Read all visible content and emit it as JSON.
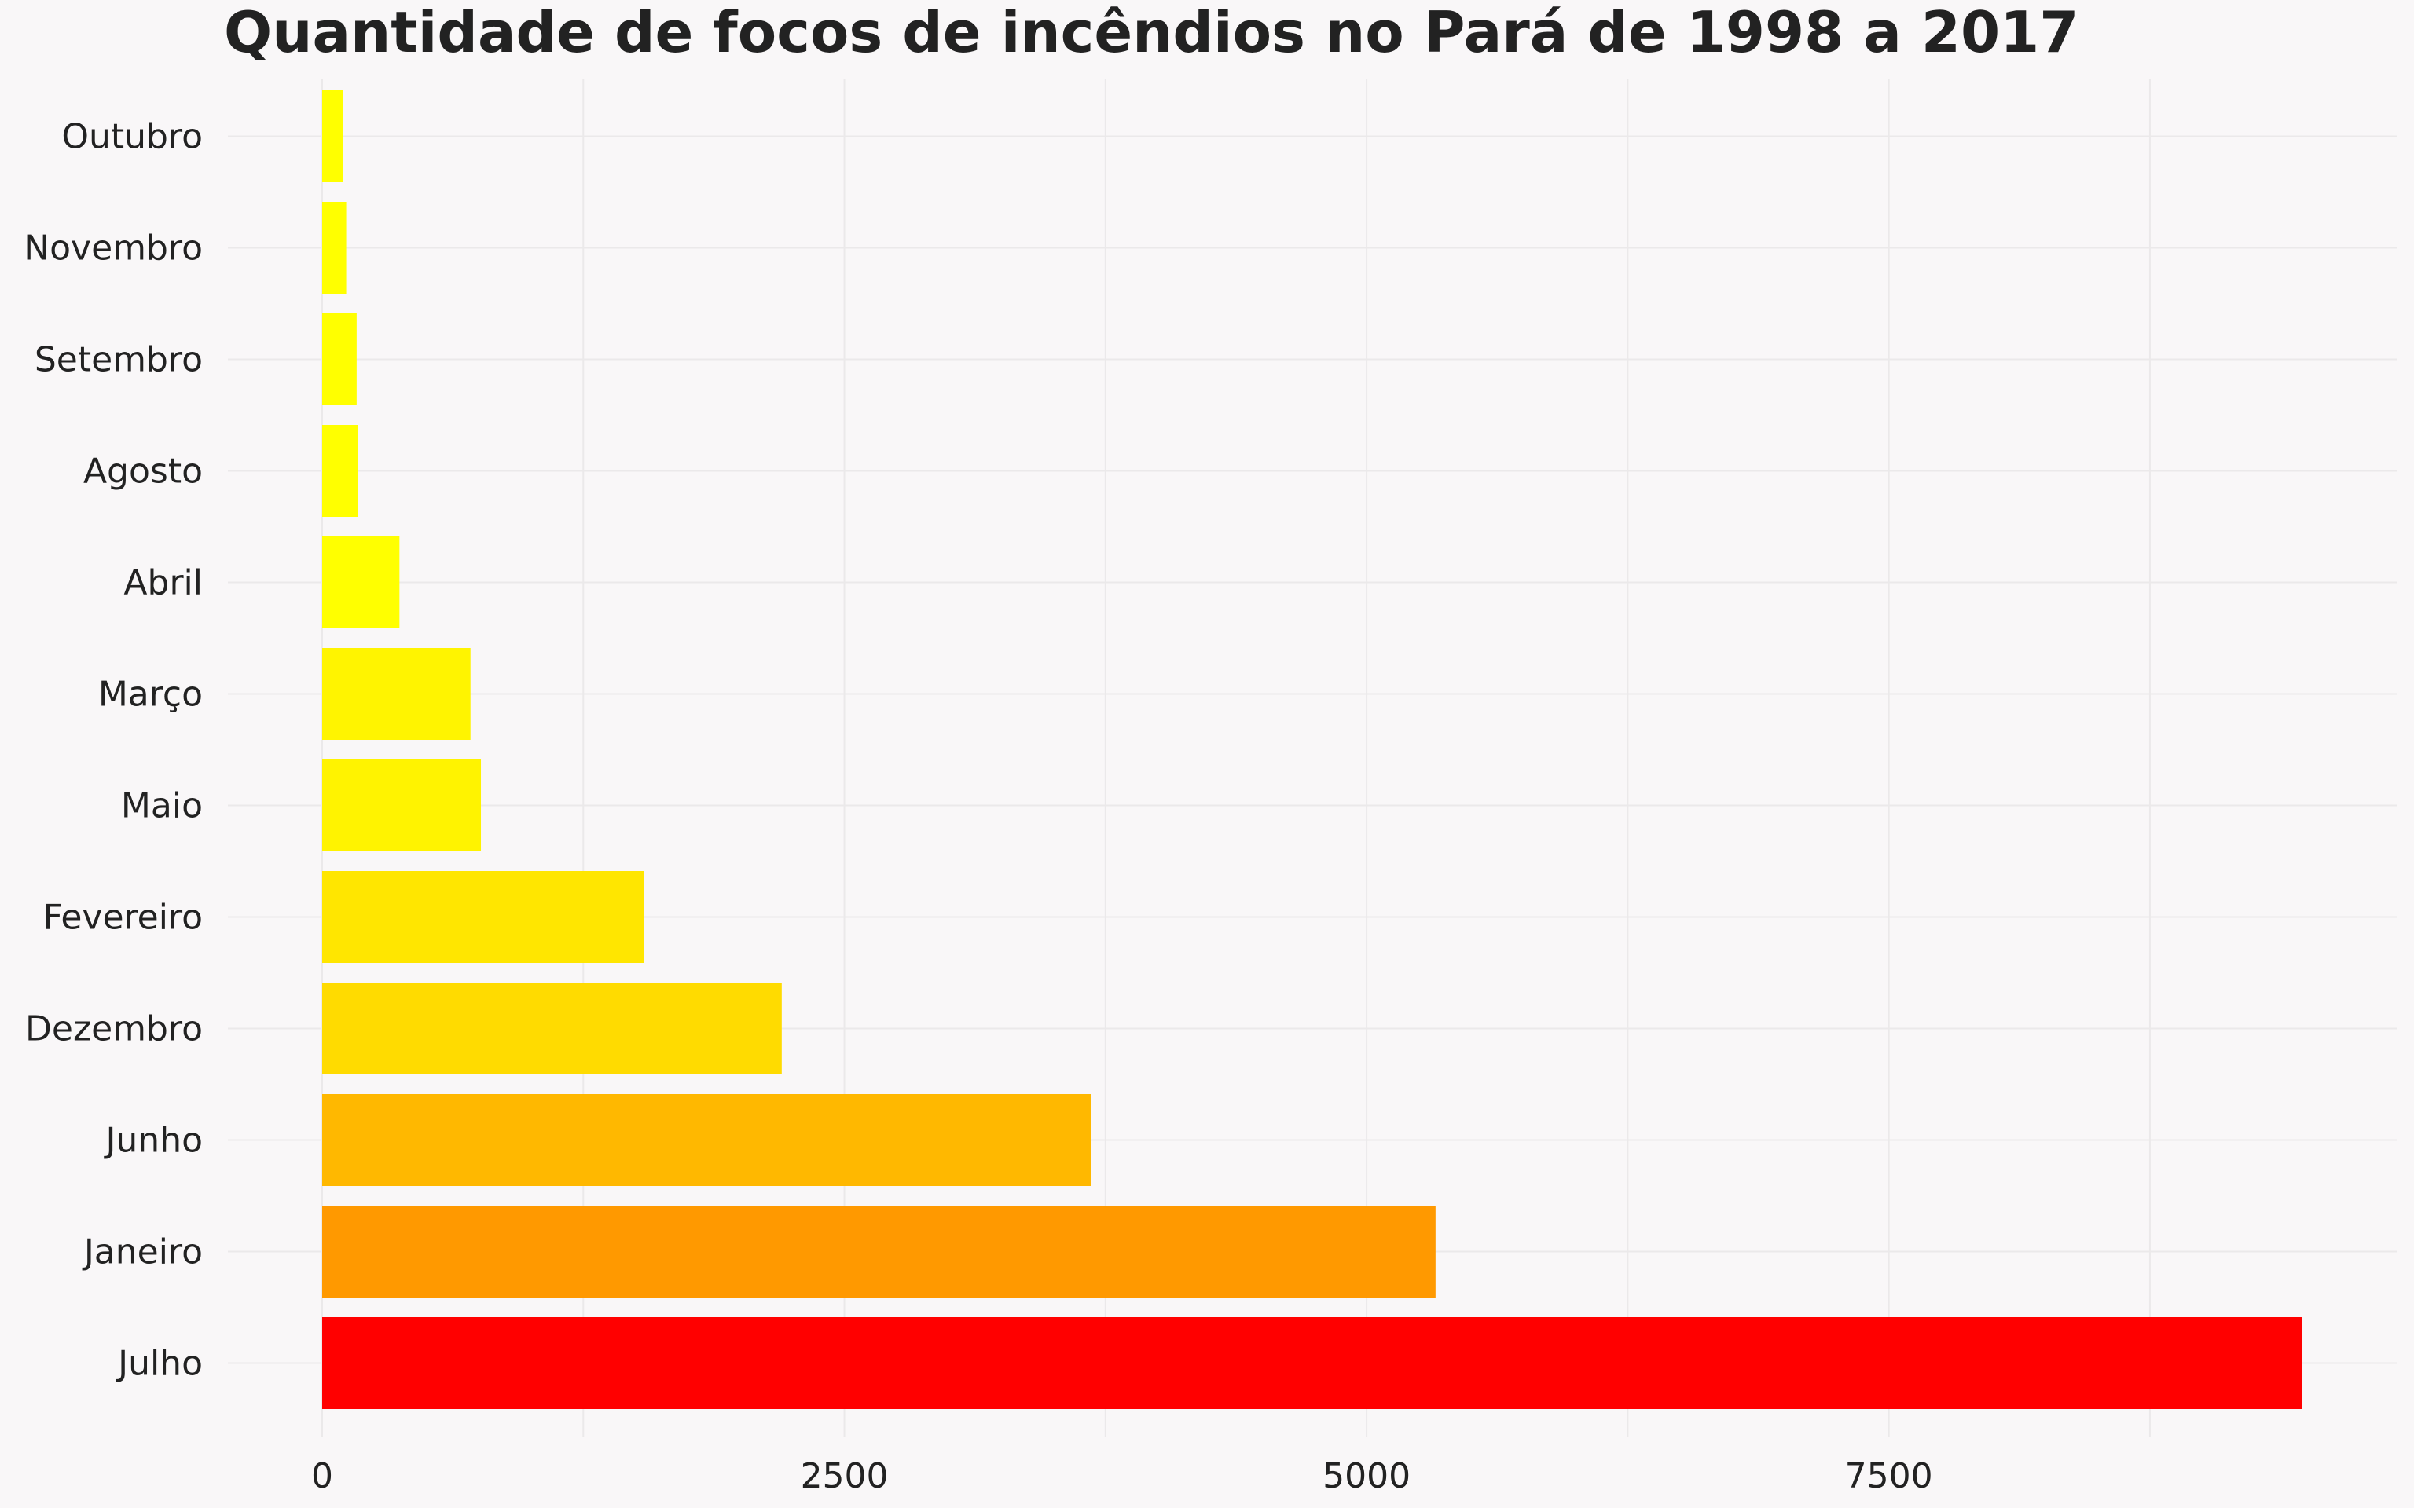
{
  "chart_data": {
    "type": "bar",
    "orientation": "horizontal",
    "title": "Quantidade de focos de incêndios no Pará de 1998 a 2017",
    "xlabel": "",
    "ylabel": "",
    "xlim": [
      -470,
      9700
    ],
    "xticks": [
      0,
      2500,
      5000,
      7500
    ],
    "xtick_labels": [
      "0",
      "2500",
      "5000",
      "7500"
    ],
    "grid": true,
    "categories": [
      "Outubro",
      "Novembro",
      "Setembro",
      "Agosto",
      "Abril",
      "Março",
      "Maio",
      "Fevereiro",
      "Dezembro",
      "Junho",
      "Janeiro",
      "Julho"
    ],
    "values": [
      100,
      115,
      165,
      170,
      370,
      710,
      760,
      1540,
      2200,
      3680,
      5330,
      9480
    ],
    "colors": [
      "#ffff00",
      "#ffff00",
      "#ffff00",
      "#ffff00",
      "#ffff00",
      "#fff400",
      "#fff300",
      "#ffe600",
      "#ffdb00",
      "#ffb800",
      "#ff9900",
      "#ff0000"
    ]
  }
}
